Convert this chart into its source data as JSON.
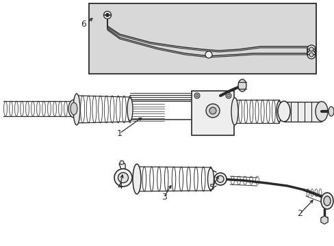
{
  "background_color": "#ffffff",
  "line_color": "#2a2a2a",
  "inset_bg": "#d8d8d8",
  "figsize": [
    4.89,
    3.6
  ],
  "dpi": 100,
  "lw": 0.9
}
